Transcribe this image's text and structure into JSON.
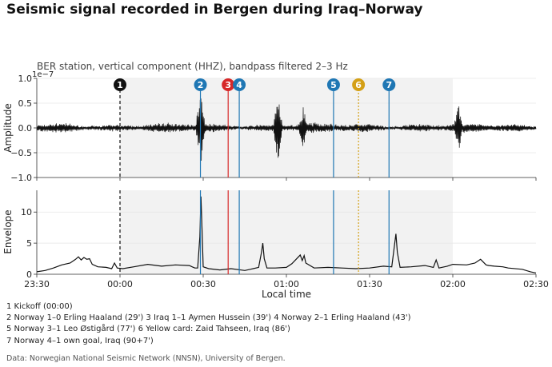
{
  "title": "Seismic signal recorded in Bergen during Iraq–Norway",
  "legend_lines": [
    [
      "1 Kickoff (00:00)"
    ],
    [
      "2 Norway 1–0 Erling Haaland (29')",
      "3 Iraq 1–1 Aymen Hussein (39')",
      "4 Norway 2–1 Erling Haaland (43')"
    ],
    [
      "5 Norway 3–1 Leo Østigård (77')",
      "6 Yellow card: Zaid Tahseen, Iraq (86')"
    ],
    [
      "7 Norway 4–1 own goal, Iraq (90+7')"
    ]
  ],
  "source": "Data: Norwegian National Seismic Network (NNSN), University of Bergen.",
  "chart_data": [
    {
      "type": "line",
      "subtitle": "BER station, vertical component (HHZ), bandpass filtered 2–3 Hz",
      "xlabel": "",
      "ylabel": "Amplitude",
      "y_scale_label": "1e−7",
      "ylim": [
        -1.0,
        1.0
      ],
      "yticks": [
        -1.0,
        -0.5,
        0.0,
        0.5,
        1.0
      ],
      "ytick_labels": [
        "−1.0",
        "−0.5",
        "0.0",
        "0.5",
        "1.0"
      ],
      "x_unit": "minutes after 23:30 local time",
      "xlim": [
        0,
        180
      ],
      "series": [
        {
          "baseline_amplitude": 0.08,
          "spikes": [
            {
              "x": 59,
              "value": 0.85
            },
            {
              "x": 87,
              "value": 0.75
            },
            {
              "x": 96,
              "value": 0.45
            },
            {
              "x": 152,
              "value": 0.5
            }
          ]
        }
      ],
      "shaded_region": [
        30,
        150
      ],
      "grid": true
    },
    {
      "type": "line",
      "xlabel": "Local time",
      "ylabel": "Envelope",
      "ylim": [
        0,
        13.5
      ],
      "yticks": [
        0,
        5,
        10
      ],
      "xticks": [
        0,
        30,
        60,
        90,
        120,
        150,
        180
      ],
      "xtick_labels": [
        "23:30",
        "00:00",
        "00:30",
        "01:00",
        "01:30",
        "02:00",
        "02:30"
      ],
      "xlim": [
        0,
        180
      ],
      "series": [
        {
          "points": [
            [
              0,
              0.4
            ],
            [
              3,
              0.6
            ],
            [
              6,
              1.0
            ],
            [
              9,
              1.5
            ],
            [
              12,
              1.8
            ],
            [
              14,
              2.4
            ],
            [
              15,
              2.8
            ],
            [
              16,
              2.3
            ],
            [
              17,
              2.7
            ],
            [
              18,
              2.4
            ],
            [
              19,
              2.5
            ],
            [
              20,
              1.6
            ],
            [
              22,
              1.2
            ],
            [
              25,
              1.1
            ],
            [
              27,
              0.9
            ],
            [
              28,
              1.8
            ],
            [
              29,
              1.0
            ],
            [
              31,
              0.9
            ],
            [
              35,
              1.2
            ],
            [
              40,
              1.6
            ],
            [
              45,
              1.3
            ],
            [
              50,
              1.5
            ],
            [
              55,
              1.4
            ],
            [
              56,
              1.2
            ],
            [
              57,
              1.0
            ],
            [
              58,
              1.0
            ],
            [
              58.8,
              6.0
            ],
            [
              59.2,
              12.5
            ],
            [
              59.6,
              7.0
            ],
            [
              60,
              1.2
            ],
            [
              62,
              0.9
            ],
            [
              66,
              0.7
            ],
            [
              70,
              0.9
            ],
            [
              75,
              0.6
            ],
            [
              77,
              0.8
            ],
            [
              78,
              0.9
            ],
            [
              80,
              1.1
            ],
            [
              81,
              3.5
            ],
            [
              81.5,
              5.0
            ],
            [
              82,
              2.5
            ],
            [
              83,
              1.0
            ],
            [
              86,
              1.0
            ],
            [
              90,
              1.1
            ],
            [
              92,
              1.7
            ],
            [
              95,
              3.1
            ],
            [
              95.7,
              2.2
            ],
            [
              96.4,
              3.0
            ],
            [
              97,
              1.8
            ],
            [
              100,
              1.0
            ],
            [
              105,
              1.1
            ],
            [
              110,
              1.0
            ],
            [
              115,
              0.9
            ],
            [
              120,
              1.0
            ],
            [
              125,
              1.3
            ],
            [
              128,
              1.2
            ],
            [
              129.5,
              6.5
            ],
            [
              130,
              3.5
            ],
            [
              131,
              1.1
            ],
            [
              135,
              1.2
            ],
            [
              140,
              1.4
            ],
            [
              143,
              1.1
            ],
            [
              144,
              2.3
            ],
            [
              145,
              1.0
            ],
            [
              148,
              1.3
            ],
            [
              150,
              1.6
            ],
            [
              155,
              1.5
            ],
            [
              158,
              1.8
            ],
            [
              160,
              2.4
            ],
            [
              162,
              1.5
            ],
            [
              163,
              1.4
            ],
            [
              165,
              1.3
            ],
            [
              168,
              1.2
            ],
            [
              170,
              1.0
            ],
            [
              175,
              0.8
            ],
            [
              178,
              0.4
            ],
            [
              180,
              0.2
            ]
          ]
        }
      ],
      "shaded_region": [
        30,
        150
      ],
      "grid": true
    }
  ],
  "events": [
    {
      "number": "1",
      "x": 30,
      "color": "#111111",
      "line": "dashed"
    },
    {
      "number": "2",
      "x": 59,
      "color": "#1f77b4",
      "line": "solid"
    },
    {
      "number": "3",
      "x": 69,
      "color": "#d62728",
      "line": "solid"
    },
    {
      "number": "4",
      "x": 73,
      "color": "#1f77b4",
      "line": "solid"
    },
    {
      "number": "5",
      "x": 107,
      "color": "#1f77b4",
      "line": "solid"
    },
    {
      "number": "6",
      "x": 116,
      "color": "#d4a017",
      "line": "dotted"
    },
    {
      "number": "7",
      "x": 127,
      "color": "#1f77b4",
      "line": "solid"
    }
  ]
}
